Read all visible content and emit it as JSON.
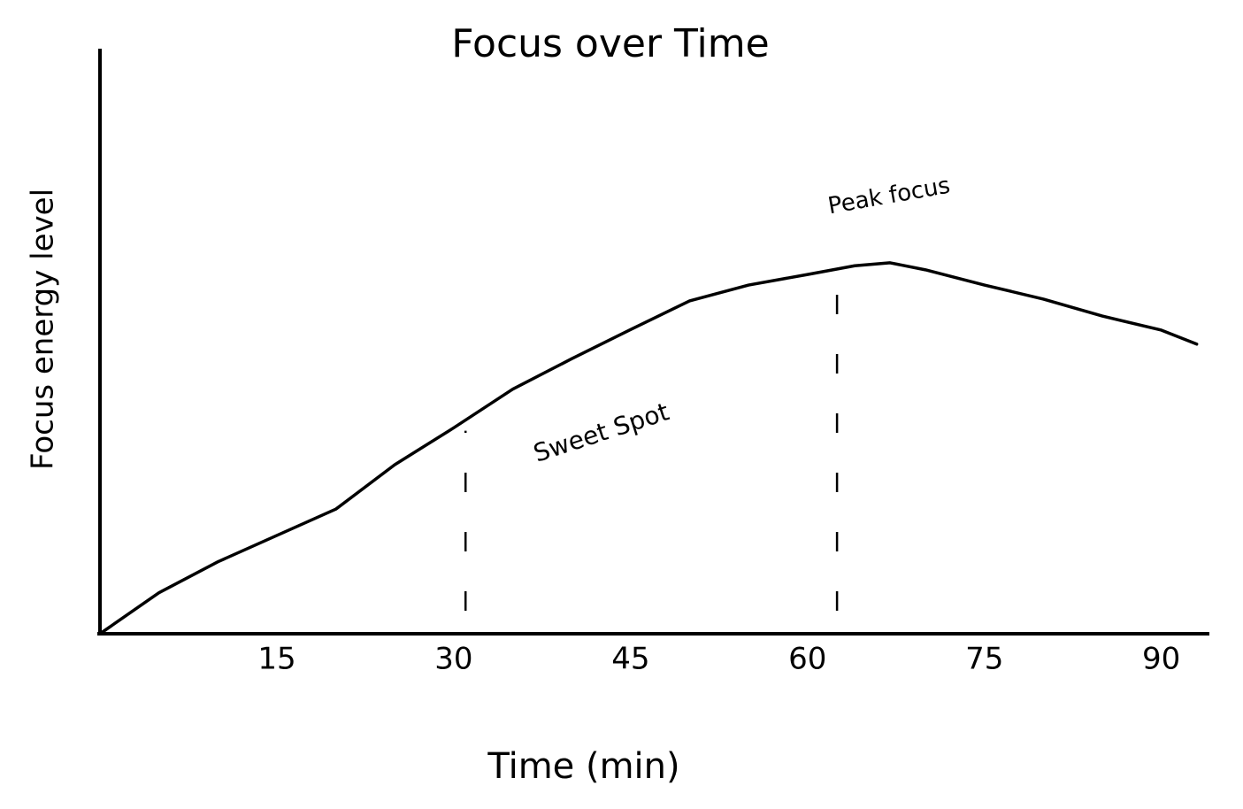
{
  "chart_data": {
    "type": "line",
    "title": "Focus over Time",
    "x_label": "Time (min)",
    "y_label": "Focus energy level",
    "x": [
      0,
      5,
      10,
      15,
      20,
      25,
      30,
      35,
      40,
      45,
      50,
      55,
      60,
      64,
      67,
      70,
      75,
      80,
      85,
      90,
      93
    ],
    "values": [
      0,
      7,
      12.3,
      16.8,
      21.3,
      28.9,
      35.2,
      41.8,
      47,
      52,
      56.9,
      59.6,
      61.4,
      62.9,
      63.4,
      62.2,
      59.6,
      57.2,
      54.3,
      51.9,
      49.5
    ],
    "color": "#000000",
    "xlim": [
      0,
      94
    ],
    "ylim": [
      0,
      100
    ],
    "xticks": [
      15,
      30,
      45,
      60,
      75,
      90
    ],
    "markers": [
      31,
      62.5
    ],
    "annotations": [
      "Sweet Spot",
      "Peak focus"
    ]
  }
}
